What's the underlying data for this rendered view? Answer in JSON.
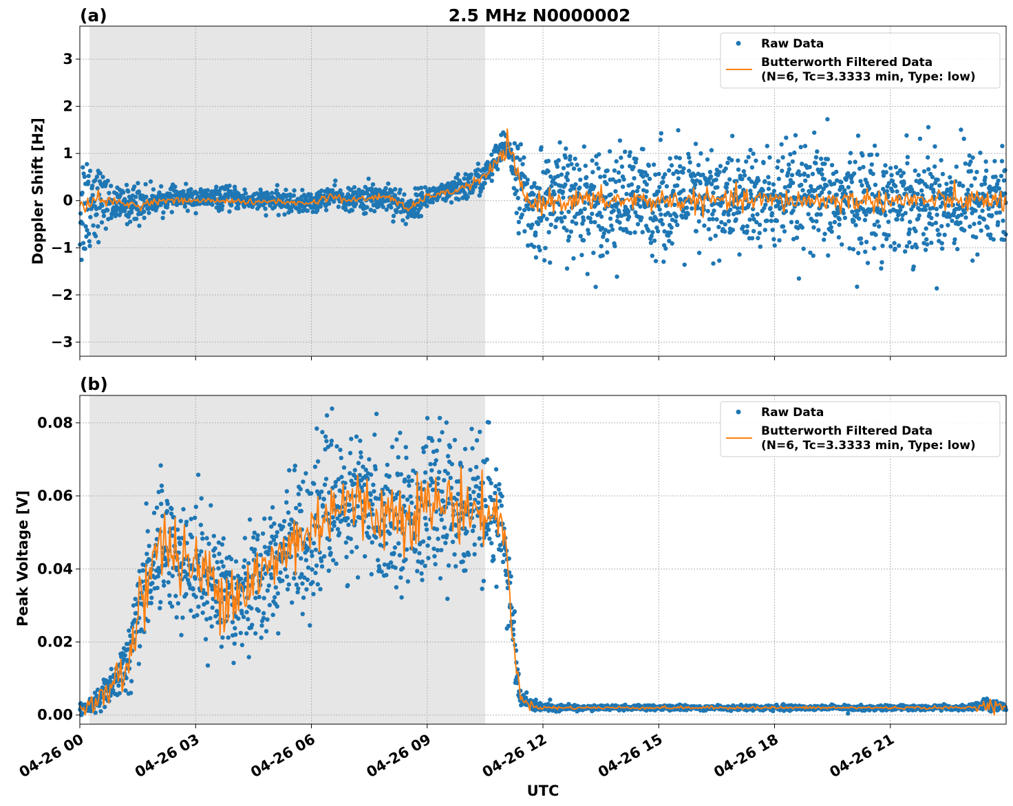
{
  "figure": {
    "title": "2.5 MHz N0000002",
    "xlabel": "UTC"
  },
  "legend": {
    "raw_label": "Raw Data",
    "filtered_label_line1": "Butterworth Filtered Data",
    "filtered_label_line2": "(N=6, Tc=3.3333 min, Type: low)"
  },
  "colors": {
    "raw": "#1f77b4",
    "filtered": "#ff7f0e",
    "shade": "#e6e6e6",
    "grid": "#b0b0b0"
  },
  "chart_data": [
    {
      "type": "scatter",
      "panel_label": "(a)",
      "title": "2.5 MHz N0000002",
      "ylabel": "Doppler Shift [Hz]",
      "xlabel": "",
      "x_unit": "hours since 04-26 00:00 UTC",
      "xlim": [
        0,
        24
      ],
      "ylim": [
        -3.3,
        3.7
      ],
      "xticks": [
        0,
        3,
        6,
        9,
        12,
        15,
        18,
        21
      ],
      "yticks": [
        -3,
        -2,
        -1,
        0,
        1,
        2,
        3
      ],
      "ytick_labels": [
        "−3",
        "−2",
        "−1",
        "0",
        "1",
        "2",
        "3"
      ],
      "grid": true,
      "legend_position": "top-right",
      "shaded_interval_hours": [
        0.25,
        10.5
      ],
      "series": [
        {
          "name": "Raw Data",
          "style": "points",
          "x": [
            0,
            0.3,
            0.6,
            1,
            1.5,
            2,
            2.5,
            3,
            3.5,
            4,
            4.5,
            5,
            5.5,
            6,
            6.5,
            7,
            7.5,
            8,
            8.5,
            9,
            9.5,
            10,
            10.5,
            10.9,
            11.1,
            11.4,
            11.7,
            12,
            13,
            14,
            15,
            16,
            17,
            18,
            19,
            20,
            21,
            22,
            23,
            24
          ],
          "center": [
            -0.2,
            0.1,
            0.0,
            -0.1,
            -0.05,
            0.0,
            0.05,
            0.05,
            0.05,
            0.05,
            0.0,
            0.0,
            -0.05,
            -0.05,
            0.1,
            0.0,
            0.05,
            0.1,
            -0.2,
            0.1,
            0.15,
            0.3,
            0.5,
            1.0,
            1.2,
            0.3,
            -0.3,
            0.0,
            0.0,
            0.0,
            0.0,
            0.0,
            0.0,
            0.0,
            0.0,
            0.0,
            0.0,
            0.0,
            0.0,
            0.0
          ],
          "spread": [
            1.3,
            1.0,
            0.5,
            0.3,
            0.4,
            0.2,
            0.2,
            0.2,
            0.2,
            0.2,
            0.2,
            0.2,
            0.2,
            0.2,
            0.2,
            0.2,
            0.3,
            0.3,
            0.3,
            0.2,
            0.2,
            0.3,
            0.3,
            0.3,
            0.3,
            0.8,
            0.8,
            1.0,
            1.0,
            1.0,
            1.0,
            1.0,
            1.0,
            1.0,
            1.0,
            1.0,
            1.0,
            1.0,
            1.0,
            1.0
          ]
        },
        {
          "name": "Butterworth Filtered Data\n(N=6, Tc=3.3333 min, Type: low)",
          "style": "line",
          "x": [
            0,
            0.3,
            0.6,
            1,
            1.5,
            2,
            2.5,
            3,
            3.5,
            4,
            4.5,
            5,
            5.5,
            6,
            6.5,
            7,
            7.5,
            8,
            8.5,
            9,
            9.5,
            10,
            10.5,
            10.9,
            11.1,
            11.4,
            11.7,
            12,
            13,
            14,
            15,
            16,
            17,
            18,
            19,
            20,
            21,
            22,
            23,
            24
          ],
          "y": [
            -0.3,
            0.1,
            0.0,
            -0.05,
            -0.1,
            0.0,
            0.0,
            0.0,
            0.0,
            0.0,
            -0.05,
            0.0,
            -0.05,
            -0.05,
            0.1,
            0.0,
            0.05,
            0.1,
            -0.2,
            0.1,
            0.15,
            0.3,
            0.5,
            0.9,
            1.2,
            0.3,
            -0.1,
            0.0,
            0.0,
            0.0,
            0.0,
            0.0,
            0.0,
            0.0,
            0.0,
            0.0,
            0.0,
            0.0,
            0.0,
            0.0
          ],
          "noise": [
            0.15,
            0.1,
            0.05,
            0.05,
            0.05,
            0.03,
            0.03,
            0.03,
            0.03,
            0.03,
            0.03,
            0.03,
            0.03,
            0.03,
            0.05,
            0.03,
            0.04,
            0.04,
            0.04,
            0.03,
            0.04,
            0.05,
            0.06,
            0.1,
            0.1,
            0.15,
            0.12,
            0.12,
            0.12,
            0.12,
            0.12,
            0.12,
            0.12,
            0.12,
            0.12,
            0.12,
            0.12,
            0.12,
            0.12,
            0.12
          ]
        }
      ]
    },
    {
      "type": "scatter",
      "panel_label": "(b)",
      "title": "",
      "ylabel": "Peak Voltage [V]",
      "xlabel": "UTC",
      "x_unit": "hours since 04-26 00:00 UTC",
      "xlim": [
        0,
        24
      ],
      "ylim": [
        -0.0025,
        0.0875
      ],
      "xticks": [
        0,
        3,
        6,
        9,
        12,
        15,
        18,
        21
      ],
      "xtick_labels": [
        "04-26 00",
        "04-26 03",
        "04-26 06",
        "04-26 09",
        "04-26 12",
        "04-26 15",
        "04-26 18",
        "04-26 21"
      ],
      "yticks": [
        0.0,
        0.02,
        0.04,
        0.06,
        0.08
      ],
      "ytick_labels": [
        "0.00",
        "0.02",
        "0.04",
        "0.06",
        "0.08"
      ],
      "grid": true,
      "legend_position": "top-right",
      "shaded_interval_hours": [
        0.25,
        10.5
      ],
      "series": [
        {
          "name": "Raw Data",
          "style": "points",
          "x": [
            0,
            0.3,
            0.5,
            0.8,
            1.0,
            1.3,
            1.5,
            1.8,
            2.0,
            2.3,
            2.6,
            3.0,
            3.3,
            3.6,
            4.0,
            4.3,
            4.6,
            5.0,
            5.3,
            5.6,
            6.0,
            6.3,
            6.6,
            7.0,
            7.5,
            8.0,
            8.5,
            9.0,
            9.5,
            10.0,
            10.5,
            10.8,
            11.0,
            11.2,
            11.4,
            11.6,
            12.0,
            13,
            14,
            15,
            16,
            17,
            18,
            19,
            20,
            21,
            22,
            23,
            23.7,
            24
          ],
          "center": [
            0.002,
            0.003,
            0.004,
            0.007,
            0.01,
            0.015,
            0.03,
            0.04,
            0.045,
            0.047,
            0.042,
            0.04,
            0.038,
            0.035,
            0.034,
            0.035,
            0.038,
            0.04,
            0.045,
            0.048,
            0.05,
            0.055,
            0.058,
            0.058,
            0.056,
            0.055,
            0.056,
            0.057,
            0.058,
            0.057,
            0.055,
            0.055,
            0.05,
            0.025,
            0.005,
            0.003,
            0.002,
            0.002,
            0.002,
            0.002,
            0.002,
            0.002,
            0.002,
            0.002,
            0.002,
            0.002,
            0.002,
            0.002,
            0.003,
            0.002
          ],
          "spread": [
            0.001,
            0.002,
            0.003,
            0.004,
            0.006,
            0.008,
            0.015,
            0.016,
            0.016,
            0.016,
            0.015,
            0.015,
            0.015,
            0.015,
            0.015,
            0.015,
            0.016,
            0.016,
            0.016,
            0.016,
            0.017,
            0.018,
            0.018,
            0.018,
            0.017,
            0.017,
            0.017,
            0.017,
            0.017,
            0.017,
            0.017,
            0.015,
            0.012,
            0.01,
            0.003,
            0.002,
            0.001,
            0.0006,
            0.0006,
            0.0006,
            0.0006,
            0.0006,
            0.0006,
            0.0006,
            0.0006,
            0.0006,
            0.0006,
            0.0006,
            0.002,
            0.0006
          ]
        },
        {
          "name": "Butterworth Filtered Data\n(N=6, Tc=3.3333 min, Type: low)",
          "style": "line",
          "x": [
            0,
            0.3,
            0.5,
            0.8,
            1.0,
            1.3,
            1.5,
            1.8,
            2.0,
            2.3,
            2.6,
            3.0,
            3.3,
            3.6,
            4.0,
            4.3,
            4.6,
            5.0,
            5.3,
            5.6,
            6.0,
            6.3,
            6.6,
            7.0,
            7.5,
            8.0,
            8.5,
            9.0,
            9.5,
            10.0,
            10.5,
            10.8,
            11.0,
            11.2,
            11.4,
            11.6,
            12.0,
            13,
            14,
            15,
            16,
            17,
            18,
            19,
            20,
            21,
            22,
            23,
            23.7,
            24
          ],
          "y": [
            0.002,
            0.003,
            0.004,
            0.007,
            0.01,
            0.015,
            0.03,
            0.04,
            0.045,
            0.047,
            0.042,
            0.04,
            0.038,
            0.035,
            0.034,
            0.035,
            0.038,
            0.04,
            0.045,
            0.048,
            0.05,
            0.055,
            0.058,
            0.058,
            0.056,
            0.055,
            0.056,
            0.057,
            0.058,
            0.057,
            0.055,
            0.055,
            0.05,
            0.025,
            0.005,
            0.003,
            0.002,
            0.002,
            0.002,
            0.002,
            0.002,
            0.002,
            0.002,
            0.002,
            0.002,
            0.002,
            0.002,
            0.002,
            0.003,
            0.002
          ],
          "noise": [
            0.0005,
            0.001,
            0.002,
            0.002,
            0.003,
            0.004,
            0.006,
            0.005,
            0.005,
            0.005,
            0.005,
            0.005,
            0.005,
            0.005,
            0.005,
            0.005,
            0.005,
            0.005,
            0.005,
            0.005,
            0.005,
            0.005,
            0.005,
            0.005,
            0.005,
            0.005,
            0.005,
            0.005,
            0.005,
            0.005,
            0.004,
            0.003,
            0.003,
            0.002,
            0.001,
            0.0005,
            0.0003,
            0.0002,
            0.0002,
            0.0002,
            0.0002,
            0.0002,
            0.0002,
            0.0002,
            0.0002,
            0.0002,
            0.0002,
            0.0002,
            0.001,
            0.0002
          ]
        }
      ]
    }
  ]
}
